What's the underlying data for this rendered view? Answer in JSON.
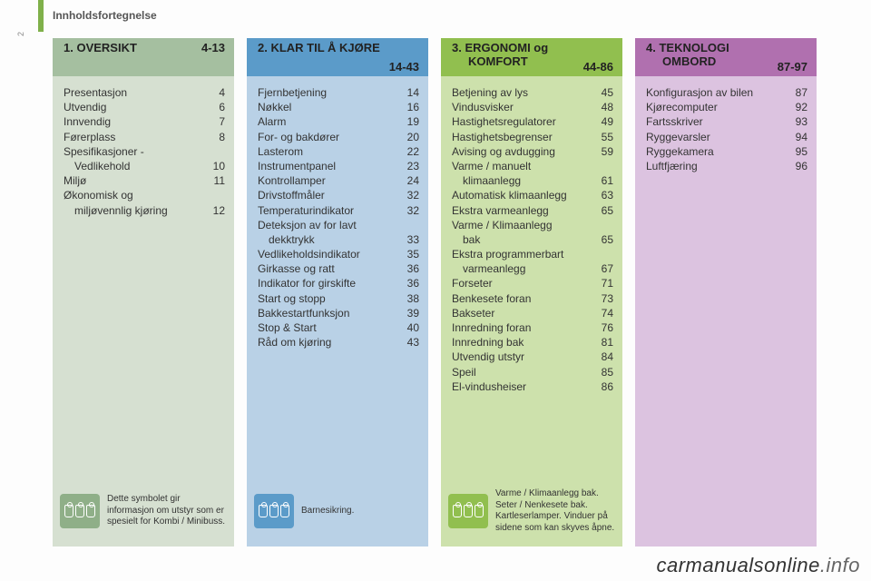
{
  "page_side_number": "2",
  "header": "Innholdsfortegnelse",
  "watermark_left": "carmanualsonline",
  "watermark_right": ".info",
  "columns": [
    {
      "head_bg": "#a5bfa0",
      "body_bg": "#d6e0d1",
      "title": "1. OVERSIKT",
      "title2": "",
      "range": "4-13",
      "single_line": true,
      "footer_icon_bg": "#8faf88",
      "footer_text": "Dette symbolet gir informasjon om utstyr som er spesielt for Kombi / Minibuss.",
      "entries": [
        {
          "t": "Presentasjon",
          "p": "4"
        },
        {
          "t": "Utvendig",
          "p": "6"
        },
        {
          "t": "Innvendig",
          "p": "7"
        },
        {
          "t": "Førerplass",
          "p": "8"
        },
        {
          "t": "Spesifikasjoner -",
          "p": ""
        },
        {
          "t": "Vedlikehold",
          "p": "10",
          "sub": true
        },
        {
          "t": "Miljø",
          "p": "11"
        },
        {
          "t": "Økonomisk og",
          "p": ""
        },
        {
          "t": "miljøvennlig kjøring",
          "p": "12",
          "sub": true
        }
      ]
    },
    {
      "head_bg": "#5b9bc9",
      "body_bg": "#b9d1e6",
      "title": "2. KLAR TIL Å KJØRE",
      "title2": "",
      "range": "14-43",
      "single_line": false,
      "footer_icon_bg": "#5b9bc9",
      "footer_text": "Barnesikring.",
      "entries": [
        {
          "t": "Fjernbetjening",
          "p": "14"
        },
        {
          "t": "Nøkkel",
          "p": "16"
        },
        {
          "t": "Alarm",
          "p": "19"
        },
        {
          "t": "For- og bakdører",
          "p": "20"
        },
        {
          "t": "Lasterom",
          "p": "22"
        },
        {
          "t": "Instrumentpanel",
          "p": "23"
        },
        {
          "t": "Kontrollamper",
          "p": "24"
        },
        {
          "t": "Drivstoffmåler",
          "p": "32"
        },
        {
          "t": "Temperaturindikator",
          "p": "32"
        },
        {
          "t": "Deteksjon av for lavt",
          "p": ""
        },
        {
          "t": "dekktrykk",
          "p": "33",
          "sub": true
        },
        {
          "t": "Vedlikeholdsindikator",
          "p": "35"
        },
        {
          "t": "Girkasse og ratt",
          "p": "36"
        },
        {
          "t": "Indikator for girskifte",
          "p": "36"
        },
        {
          "t": "Start og stopp",
          "p": "38"
        },
        {
          "t": "Bakkestartfunksjon",
          "p": "39"
        },
        {
          "t": "Stop & Start",
          "p": "40"
        },
        {
          "t": "Råd om kjøring",
          "p": "43"
        }
      ]
    },
    {
      "head_bg": "#91bf4f",
      "body_bg": "#cde1ac",
      "title": "3. ERGONOMI og",
      "title2": "KOMFORT",
      "range": "44-86",
      "single_line": false,
      "footer_icon_bg": "#91bf4f",
      "footer_text": "Varme / Klimaanlegg bak. Seter / Nenkesete bak. Kartleserlamper. Vinduer på sidene som kan skyves åpne.",
      "entries": [
        {
          "t": "Betjening av lys",
          "p": "45"
        },
        {
          "t": "Vindusvisker",
          "p": "48"
        },
        {
          "t": "Hastighetsregulatorer",
          "p": "49"
        },
        {
          "t": "Hastighetsbegrenser",
          "p": "55"
        },
        {
          "t": "Avising og avdugging",
          "p": "59"
        },
        {
          "t": "Varme / manuelt",
          "p": ""
        },
        {
          "t": "klimaanlegg",
          "p": "61",
          "sub": true
        },
        {
          "t": "Automatisk klimaanlegg",
          "p": "63"
        },
        {
          "t": "Ekstra varmeanlegg",
          "p": "65"
        },
        {
          "t": "Varme / Klimaanlegg",
          "p": ""
        },
        {
          "t": "bak",
          "p": "65",
          "sub": true
        },
        {
          "t": "Ekstra programmerbart",
          "p": ""
        },
        {
          "t": "varmeanlegg",
          "p": "67",
          "sub": true
        },
        {
          "t": "Forseter",
          "p": "71"
        },
        {
          "t": "Benkesete foran",
          "p": "73"
        },
        {
          "t": "Bakseter",
          "p": "74"
        },
        {
          "t": "Innredning foran",
          "p": "76"
        },
        {
          "t": "Innredning bak",
          "p": "81"
        },
        {
          "t": "Utvendig utstyr",
          "p": "84"
        },
        {
          "t": "Speil",
          "p": "85"
        },
        {
          "t": "El-vindusheiser",
          "p": "86"
        }
      ]
    },
    {
      "head_bg": "#b070af",
      "body_bg": "#dcc3e0",
      "title": "4. TEKNOLOGI",
      "title2": "OMBORD",
      "range": "87-97",
      "single_line": false,
      "footer_icon_bg": "",
      "footer_text": "",
      "entries": [
        {
          "t": "Konfigurasjon av bilen",
          "p": "87"
        },
        {
          "t": "Kjørecomputer",
          "p": "92"
        },
        {
          "t": "Fartsskriver",
          "p": "93"
        },
        {
          "t": "Ryggevarsler",
          "p": "94"
        },
        {
          "t": "Ryggekamera",
          "p": "95"
        },
        {
          "t": "Luftfjæring",
          "p": "96"
        }
      ]
    }
  ]
}
